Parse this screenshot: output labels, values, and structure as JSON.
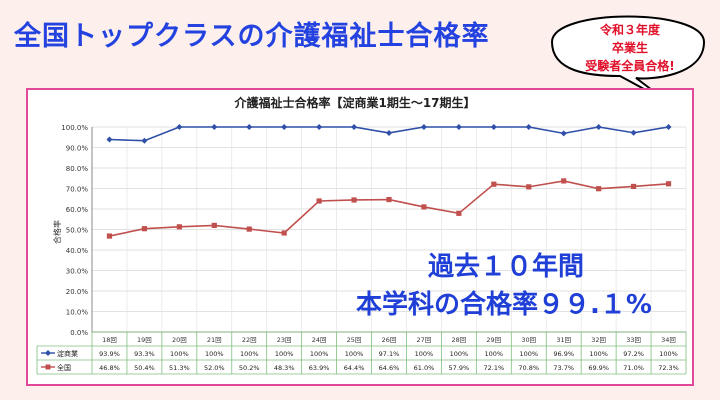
{
  "headline": "全国トップクラスの介護福祉士合格率",
  "bubble": {
    "line1": "令和３年度",
    "line2": "卒業生",
    "line3": "受験者全員合格!"
  },
  "callout": {
    "line1": "過去１０年間",
    "line2": "本学科の合格率９９.１%"
  },
  "colors": {
    "page_bg": "#fdf0ec",
    "headline": "#2342e0",
    "frame": "#e0489a",
    "series_school": "#2f4fa8",
    "series_national": "#c0504d",
    "table_border": "#7fbf7f",
    "callout": "#1f3fd6"
  },
  "chart_data": {
    "type": "line",
    "title": "介護福祉士合格率【淀商業1期生～17期生】",
    "ylabel": "合格率",
    "ylim": [
      0,
      100
    ],
    "ytick_labels": [
      "0.0%",
      "10.0%",
      "20.0%",
      "30.0%",
      "40.0%",
      "50.0%",
      "60.0%",
      "70.0%",
      "80.0%",
      "90.0%",
      "100.0%"
    ],
    "grid": true,
    "categories": [
      "18回",
      "19回",
      "20回",
      "21回",
      "22回",
      "23回",
      "24回",
      "25回",
      "26回",
      "27回",
      "28回",
      "29回",
      "30回",
      "31回",
      "32回",
      "33回",
      "34回"
    ],
    "series": [
      {
        "name": "淀商業",
        "marker": "diamond",
        "values": [
          93.9,
          93.3,
          100,
          100,
          100,
          100,
          100,
          100,
          97.1,
          100,
          100,
          100,
          100,
          96.9,
          100,
          97.2,
          100
        ],
        "labels": [
          "93.9%",
          "93.3%",
          "100%",
          "100%",
          "100%",
          "100%",
          "100%",
          "100%",
          "97.1%",
          "100%",
          "100%",
          "100%",
          "100%",
          "96.9%",
          "100%",
          "97.2%",
          "100%"
        ]
      },
      {
        "name": "全国",
        "marker": "square",
        "values": [
          46.8,
          50.4,
          51.3,
          52.0,
          50.2,
          48.3,
          63.9,
          64.4,
          64.6,
          61.0,
          57.9,
          72.1,
          70.8,
          73.7,
          69.9,
          71.0,
          72.3
        ],
        "labels": [
          "46.8%",
          "50.4%",
          "51.3%",
          "52.0%",
          "50.2%",
          "48.3%",
          "63.9%",
          "64.4%",
          "64.6%",
          "61.0%",
          "57.9%",
          "72.1%",
          "70.8%",
          "73.7%",
          "69.9%",
          "71.0%",
          "72.3%"
        ]
      }
    ]
  }
}
